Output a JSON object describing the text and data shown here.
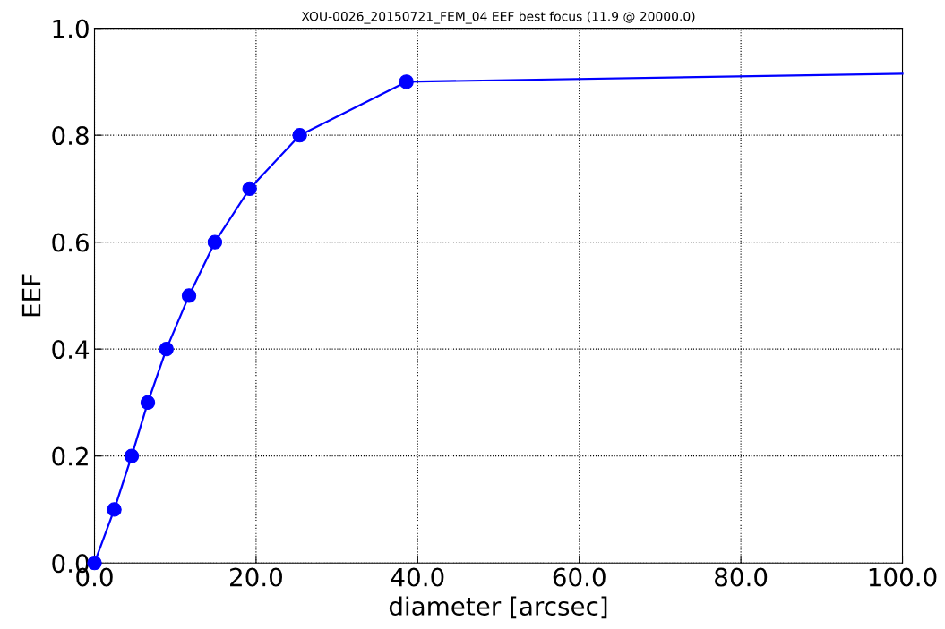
{
  "chart_data": {
    "type": "line",
    "title": "XOU-0026_20150721_FEM_04 EEF best focus (11.9 @ 20000.0)",
    "xlabel": "diameter [arcsec]",
    "ylabel": "EEF",
    "series": [
      {
        "color": "#0000ff",
        "marker": "circle",
        "x": [
          0.0,
          2.45,
          4.6,
          6.6,
          8.9,
          11.7,
          14.9,
          19.2,
          25.4,
          38.6
        ],
        "values": [
          0.0,
          0.1,
          0.2,
          0.3,
          0.4,
          0.5,
          0.6,
          0.7,
          0.8,
          0.9
        ]
      },
      {
        "color": "#0000ff",
        "marker": "none",
        "x": [
          38.6,
          100.0
        ],
        "values": [
          0.9,
          0.915
        ]
      }
    ],
    "xlim": [
      0.0,
      100.0
    ],
    "ylim": [
      0.0,
      1.0
    ],
    "xticks": [
      {
        "value": 0,
        "label": "0.0"
      },
      {
        "value": 20,
        "label": "20.0"
      },
      {
        "value": 40,
        "label": "40.0"
      },
      {
        "value": 60,
        "label": "60.0"
      },
      {
        "value": 80,
        "label": "80.0"
      },
      {
        "value": 100,
        "label": "100.0"
      }
    ],
    "yticks": [
      {
        "value": 0,
        "label": "0.0"
      },
      0.2,
      0.4,
      0.6,
      0.8,
      {
        "value": 1,
        "label": "1.0"
      }
    ],
    "grid": true,
    "line_style": "solid"
  }
}
